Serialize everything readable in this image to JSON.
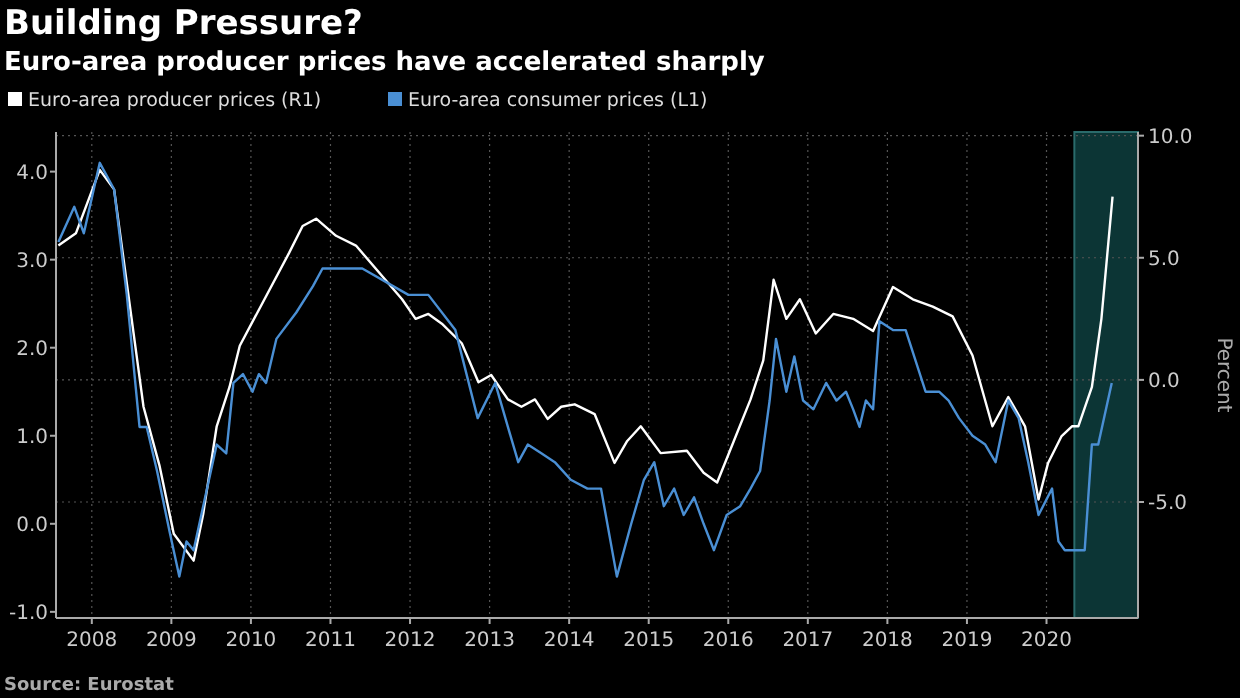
{
  "chart_data": {
    "type": "line",
    "title": "Building Pressure?",
    "subtitle": "Euro-area producer prices have accelerated sharply",
    "y2label": "Percent",
    "annotations": [
      "Source: Eurostat"
    ],
    "legend": "top left",
    "grid": true,
    "xlim": [
      2008.05,
      2021.65
    ],
    "xticks": [
      {
        "value": 2008.5,
        "label": "2008"
      },
      {
        "value": 2009.5,
        "label": "2009"
      },
      {
        "value": 2010.5,
        "label": "2010"
      },
      {
        "value": 2011.5,
        "label": "2011"
      },
      {
        "value": 2012.5,
        "label": "2012"
      },
      {
        "value": 2013.5,
        "label": "2013"
      },
      {
        "value": 2014.5,
        "label": "2014"
      },
      {
        "value": 2015.5,
        "label": "2015"
      },
      {
        "value": 2016.5,
        "label": "2016"
      },
      {
        "value": 2017.5,
        "label": "2017"
      },
      {
        "value": 2018.5,
        "label": "2018"
      },
      {
        "value": 2019.5,
        "label": "2019"
      },
      {
        "value": 2020.5,
        "label": "2020"
      }
    ],
    "ylim": [
      -1.07,
      4.45
    ],
    "yticks": [
      {
        "value": -1,
        "label": "-1.0"
      },
      {
        "value": 0,
        "label": "0.0"
      },
      {
        "value": 1,
        "label": "1.0"
      },
      {
        "value": 2,
        "label": "2.0"
      },
      {
        "value": 3,
        "label": "3.0"
      },
      {
        "value": 4,
        "label": "4.0"
      }
    ],
    "y2lim": [
      -9.75,
      10.15
    ],
    "y2ticks": [
      {
        "value": -5,
        "label": "-5.0"
      },
      {
        "value": 0,
        "label": "0.0"
      },
      {
        "value": 5,
        "label": "5.0"
      },
      {
        "value": 10,
        "label": "10.0"
      }
    ],
    "bands": [
      {
        "axis": "x",
        "from": 2020.85,
        "to": 2021.65,
        "color": "#0c3535"
      }
    ],
    "series": [
      {
        "name": "Euro-area producer prices (R1)",
        "color": "#ffffff",
        "axis": "y2",
        "x": [
          2008.08,
          2008.3,
          2008.6,
          2008.78,
          2008.98,
          2009.15,
          2009.35,
          2009.53,
          2009.78,
          2009.9,
          2010.07,
          2010.23,
          2010.36,
          2010.98,
          2011.15,
          2011.32,
          2011.57,
          2011.82,
          2012.4,
          2012.57,
          2012.73,
          2012.9,
          2013.15,
          2013.36,
          2013.52,
          2013.73,
          2013.9,
          2014.07,
          2014.23,
          2014.4,
          2014.57,
          2014.82,
          2015.07,
          2015.23,
          2015.4,
          2015.65,
          2015.98,
          2016.19,
          2016.36,
          2016.57,
          2016.78,
          2016.94,
          2017.07,
          2017.23,
          2017.4,
          2017.6,
          2017.82,
          2018.07,
          2018.32,
          2018.57,
          2018.82,
          2019.07,
          2019.32,
          2019.57,
          2019.82,
          2020.02,
          2020.23,
          2020.4,
          2020.52,
          2020.69,
          2020.82,
          2020.9,
          2021.07,
          2021.19,
          2021.33
        ],
        "values": [
          5.5,
          6.0,
          8.6,
          7.8,
          3.0,
          -1.1,
          -3.5,
          -6.3,
          -7.4,
          -5.5,
          -1.9,
          -0.3,
          1.4,
          5.2,
          6.3,
          6.6,
          5.9,
          5.5,
          3.3,
          2.5,
          2.7,
          2.3,
          1.5,
          -0.1,
          0.2,
          -0.8,
          -1.1,
          -0.8,
          -1.6,
          -1.1,
          -1.0,
          -1.4,
          -3.4,
          -2.5,
          -1.9,
          -3.0,
          -2.9,
          -3.8,
          -4.2,
          -2.5,
          -0.8,
          0.8,
          4.1,
          2.5,
          3.3,
          1.9,
          2.7,
          2.5,
          2.0,
          3.8,
          3.3,
          3.0,
          2.6,
          1.0,
          -1.9,
          -0.7,
          -1.9,
          -4.9,
          -3.4,
          -2.3,
          -1.9,
          -1.9,
          -0.3,
          2.5,
          7.5
        ]
      },
      {
        "name": "Euro-area consumer prices (L1)",
        "color": "#4a8fd4",
        "x": [
          2008.08,
          2008.28,
          2008.4,
          2008.6,
          2008.78,
          2008.94,
          2009.1,
          2009.19,
          2009.32,
          2009.48,
          2009.6,
          2009.69,
          2009.78,
          2009.9,
          2010.07,
          2010.19,
          2010.28,
          2010.4,
          2010.52,
          2010.6,
          2010.69,
          2010.82,
          2011.07,
          2011.28,
          2011.4,
          2011.9,
          2012.48,
          2012.73,
          2013.07,
          2013.35,
          2013.57,
          2013.73,
          2013.86,
          2013.98,
          2014.15,
          2014.32,
          2014.52,
          2014.73,
          2014.9,
          2015.1,
          2015.28,
          2015.44,
          2015.57,
          2015.69,
          2015.82,
          2015.94,
          2016.07,
          2016.19,
          2016.32,
          2016.48,
          2016.65,
          2016.78,
          2016.9,
          2017.02,
          2017.1,
          2017.23,
          2017.33,
          2017.44,
          2017.57,
          2017.73,
          2017.86,
          2017.98,
          2018.07,
          2018.15,
          2018.23,
          2018.32,
          2018.4,
          2018.57,
          2018.73,
          2018.98,
          2019.15,
          2019.27,
          2019.4,
          2019.57,
          2019.73,
          2019.86,
          2020.02,
          2020.15,
          2020.27,
          2020.4,
          2020.57,
          2020.65,
          2020.73,
          2020.98,
          2021.07,
          2021.15,
          2021.32
        ],
        "values": [
          3.2,
          3.6,
          3.3,
          4.1,
          3.8,
          2.6,
          1.1,
          1.1,
          0.6,
          -0.1,
          -0.6,
          -0.2,
          -0.3,
          0.2,
          0.9,
          0.8,
          1.6,
          1.7,
          1.5,
          1.7,
          1.6,
          2.1,
          2.4,
          2.7,
          2.9,
          2.9,
          2.6,
          2.6,
          2.2,
          1.2,
          1.6,
          1.1,
          0.7,
          0.9,
          0.8,
          0.7,
          0.5,
          0.4,
          0.4,
          -0.6,
          0.0,
          0.5,
          0.7,
          0.2,
          0.4,
          0.1,
          0.3,
          0.0,
          -0.3,
          0.1,
          0.2,
          0.4,
          0.6,
          1.4,
          2.1,
          1.5,
          1.9,
          1.4,
          1.3,
          1.6,
          1.4,
          1.5,
          1.3,
          1.1,
          1.4,
          1.3,
          2.3,
          2.2,
          2.2,
          1.5,
          1.5,
          1.4,
          1.2,
          1.0,
          0.9,
          0.7,
          1.4,
          1.2,
          0.7,
          0.1,
          0.4,
          -0.2,
          -0.3,
          -0.3,
          0.9,
          0.9,
          1.6
        ]
      }
    ]
  }
}
